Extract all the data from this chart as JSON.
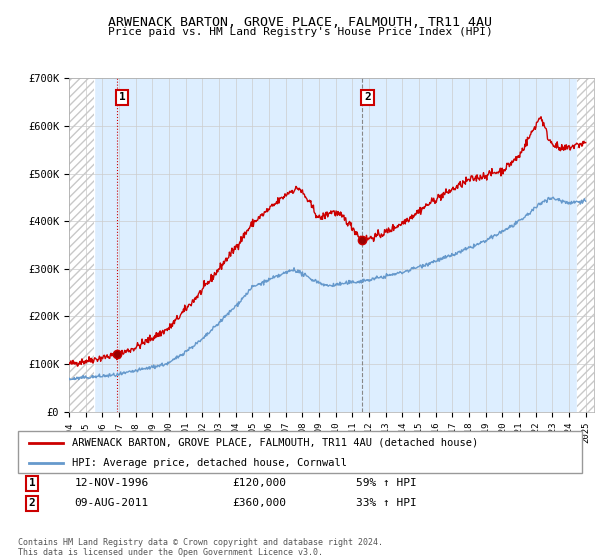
{
  "title": "ARWENACK BARTON, GROVE PLACE, FALMOUTH, TR11 4AU",
  "subtitle": "Price paid vs. HM Land Registry's House Price Index (HPI)",
  "ylim": [
    0,
    700000
  ],
  "yticks": [
    0,
    100000,
    200000,
    300000,
    400000,
    500000,
    600000,
    700000
  ],
  "ytick_labels": [
    "£0",
    "£100K",
    "£200K",
    "£300K",
    "£400K",
    "£500K",
    "£600K",
    "£700K"
  ],
  "sale1_date": 1996.87,
  "sale1_price": 120000,
  "sale1_label": "1",
  "sale2_date": 2011.6,
  "sale2_price": 360000,
  "sale2_label": "2",
  "red_line_color": "#cc0000",
  "blue_line_color": "#6699cc",
  "plot_bg_color": "#ddeeff",
  "hatch_color": "#c8c8c8",
  "legend_red_label": "ARWENACK BARTON, GROVE PLACE, FALMOUTH, TR11 4AU (detached house)",
  "legend_blue_label": "HPI: Average price, detached house, Cornwall",
  "note1_box": "1",
  "note1_date": "12-NOV-1996",
  "note1_price": "£120,000",
  "note1_hpi": "59% ↑ HPI",
  "note2_box": "2",
  "note2_date": "09-AUG-2011",
  "note2_price": "£360,000",
  "note2_hpi": "33% ↑ HPI",
  "footer": "Contains HM Land Registry data © Crown copyright and database right 2024.\nThis data is licensed under the Open Government Licence v3.0.",
  "bg_color": "#ffffff"
}
